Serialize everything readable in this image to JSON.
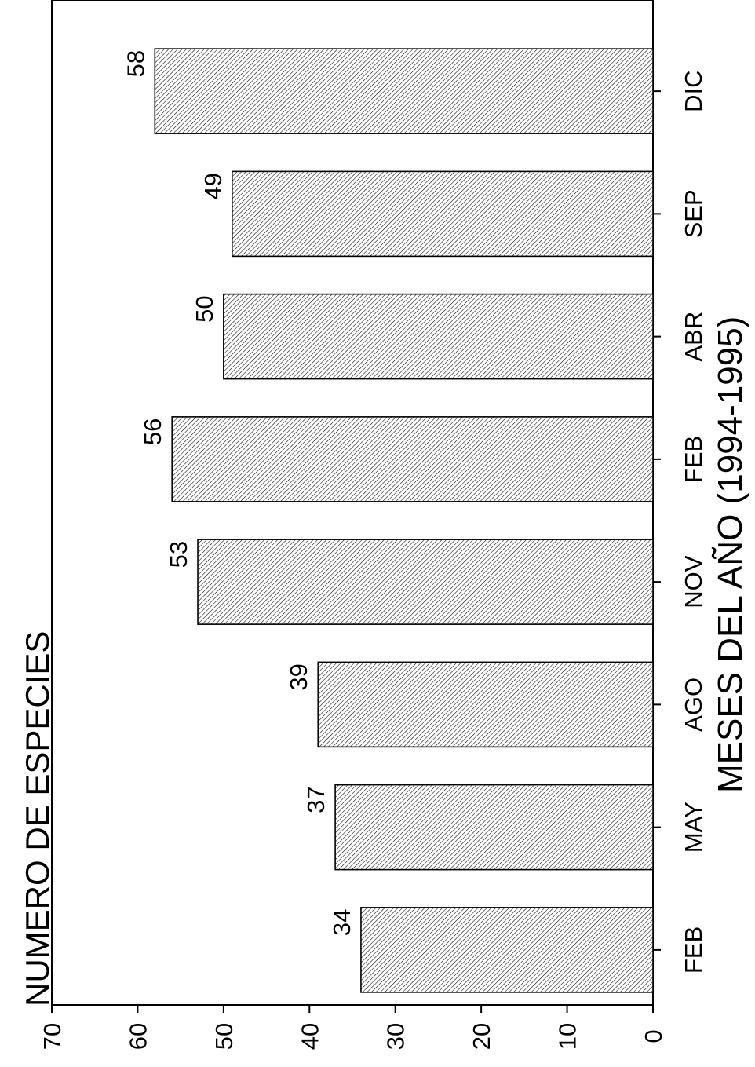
{
  "chart_data": {
    "type": "bar",
    "orientation": "rotated-90-ccw",
    "categories": [
      "FEB",
      "MAY",
      "AGO",
      "NOV",
      "FEB",
      "ABR",
      "SEP",
      "DIC"
    ],
    "values": [
      34,
      37,
      39,
      53,
      56,
      50,
      49,
      58
    ],
    "data_labels": [
      "34",
      "37",
      "39",
      "53",
      "56",
      "50",
      "49",
      "58"
    ],
    "ylabel": "NUMERO DE ESPECIES",
    "xlabel": "MESES DEL AÑO (1994-1995)",
    "ylim": [
      0,
      70
    ],
    "yticks": [
      0,
      10,
      20,
      30,
      40,
      50,
      60,
      70
    ],
    "ytick_labels": [
      "0",
      "10",
      "20",
      "30",
      "40",
      "50",
      "60",
      "70"
    ],
    "grid": false,
    "legend": "none",
    "bar_fill": "diagonal-hatch",
    "colors": {
      "bar_stroke": "#000000",
      "hatch": "#000000",
      "background": "#ffffff"
    }
  }
}
